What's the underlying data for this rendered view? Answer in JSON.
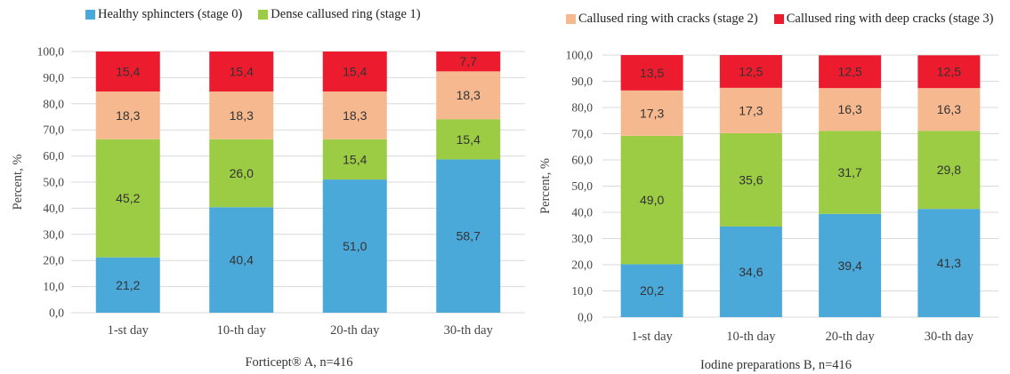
{
  "colors": {
    "stage0": "#4ba9da",
    "stage1": "#9ccb44",
    "stage2": "#f6b98f",
    "stage3": "#ec1c2e",
    "grid": "#d9d9d9",
    "axis_text": "#444444"
  },
  "legend_left": [
    {
      "label": "Healthy sphincters (stage 0)",
      "color": "#4ba9da"
    },
    {
      "label": "Dense callused ring (stage 1)",
      "color": "#9ccb44"
    }
  ],
  "legend_right": [
    {
      "label": "Callused ring with cracks (stage 2)",
      "color": "#f6b98f"
    },
    {
      "label": "Callused ring with deep cracks (stage 3)",
      "color": "#ec1c2e"
    }
  ],
  "chart_data": [
    {
      "type": "bar",
      "stacked": true,
      "title": "Forticept® A, n=416",
      "ylabel": "Percent, %",
      "ylim": [
        0,
        100
      ],
      "ytick_labels": [
        "0,0",
        "10,0",
        "20,0",
        "30,0",
        "40,0",
        "50,0",
        "60,0",
        "70,0",
        "80,0",
        "90,0",
        "100,0"
      ],
      "categories": [
        "1-st day",
        "10-th day",
        "20-th day",
        "30-th day"
      ],
      "series": [
        {
          "name": "Healthy sphincters (stage 0)",
          "values": [
            21.2,
            40.4,
            51.0,
            58.7
          ],
          "labels": [
            "21,2",
            "40,4",
            "51,0",
            "58,7"
          ]
        },
        {
          "name": "Dense callused ring (stage 1)",
          "values": [
            45.2,
            26.0,
            15.4,
            15.4
          ],
          "labels": [
            "45,2",
            "26,0",
            "15,4",
            "15,4"
          ]
        },
        {
          "name": "Callused ring with cracks (stage 2)",
          "values": [
            18.3,
            18.3,
            18.3,
            18.3
          ],
          "labels": [
            "18,3",
            "18,3",
            "18,3",
            "18,3"
          ]
        },
        {
          "name": "Callused ring with deep cracks (stage 3)",
          "values": [
            15.4,
            15.4,
            15.4,
            7.7
          ],
          "labels": [
            "15,4",
            "15,4",
            "15,4",
            "7,7"
          ]
        }
      ]
    },
    {
      "type": "bar",
      "stacked": true,
      "title": "Iodine preparations B, n=416",
      "ylabel": "Percent, %",
      "ylim": [
        0,
        100
      ],
      "ytick_labels": [
        "0,0",
        "10,0",
        "20,0",
        "30,0",
        "40,0",
        "50,0",
        "60,0",
        "70,0",
        "80,0",
        "90,0",
        "100,0"
      ],
      "categories": [
        "1-st day",
        "10-th day",
        "20-th day",
        "30-th day"
      ],
      "series": [
        {
          "name": "Healthy sphincters (stage 0)",
          "values": [
            20.2,
            34.6,
            39.4,
            41.3
          ],
          "labels": [
            "20,2",
            "34,6",
            "39,4",
            "41,3"
          ]
        },
        {
          "name": "Dense callused ring (stage 1)",
          "values": [
            49.0,
            35.6,
            31.7,
            29.8
          ],
          "labels": [
            "49,0",
            "35,6",
            "31,7",
            "29,8"
          ]
        },
        {
          "name": "Callused ring with cracks (stage 2)",
          "values": [
            17.3,
            17.3,
            16.3,
            16.3
          ],
          "labels": [
            "17,3",
            "17,3",
            "16,3",
            "16,3"
          ]
        },
        {
          "name": "Callused ring with deep cracks (stage 3)",
          "values": [
            13.5,
            12.5,
            12.5,
            12.5
          ],
          "labels": [
            "13,5",
            "12,5",
            "12,5",
            "12,5"
          ]
        }
      ]
    }
  ]
}
